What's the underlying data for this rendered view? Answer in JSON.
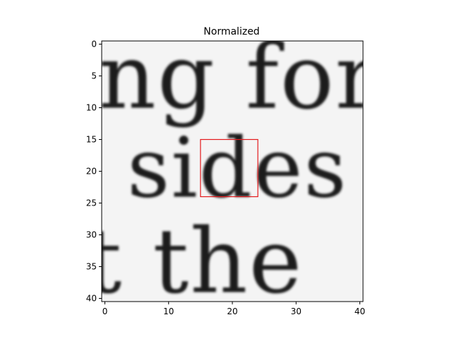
{
  "chart_data": {
    "type": "heatmap",
    "title": "Normalized",
    "colormap": "gray",
    "x_range": [
      -0.5,
      40.5
    ],
    "y_range": [
      -0.5,
      40.5
    ],
    "y_inverted": true,
    "x_ticks": [
      0,
      10,
      20,
      30,
      40
    ],
    "y_ticks": [
      0,
      5,
      10,
      15,
      20,
      25,
      30,
      35,
      40
    ],
    "x_tick_labels": [
      "0",
      "10",
      "20",
      "30",
      "40"
    ],
    "y_tick_labels": [
      "0",
      "5",
      "10",
      "15",
      "20",
      "25",
      "30",
      "35",
      "40"
    ],
    "text_lines": [
      {
        "text": "ng for",
        "baseline_y": 10,
        "x_start": -1.0,
        "font_height": 14
      },
      {
        "text": "sides",
        "baseline_y": 24,
        "x_start": 3.5,
        "font_height": 13
      },
      {
        "text": "t the",
        "baseline_y": 39,
        "x_start": -3.0,
        "font_height": 14
      }
    ],
    "highlight_box": {
      "x0": 15,
      "y0": 15,
      "x1": 24,
      "y1": 24,
      "color": "#e41a1c"
    }
  }
}
